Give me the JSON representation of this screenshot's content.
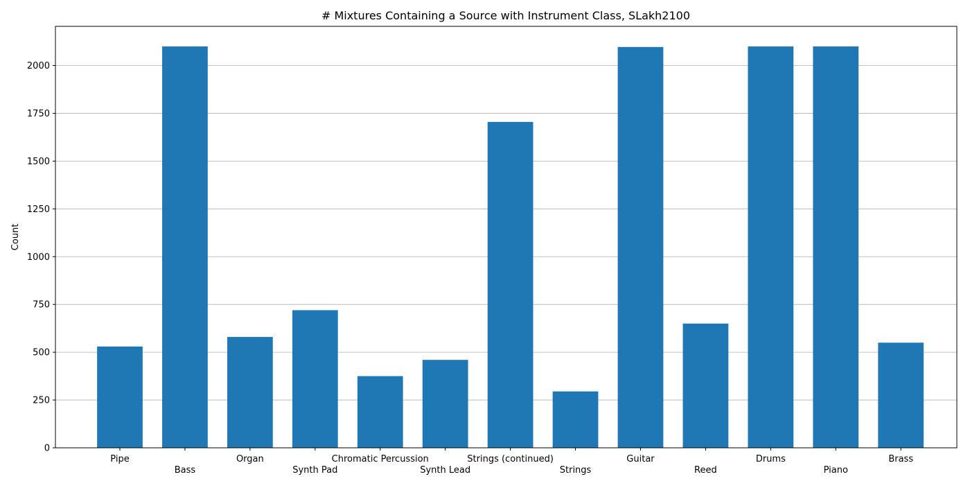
{
  "chart_data": {
    "type": "bar",
    "title": "# Mixtures Containing a Source with Instrument Class, SLakh2100",
    "xlabel": "",
    "ylabel": "Count",
    "categories": [
      "Pipe",
      "Bass",
      "Organ",
      "Synth Pad",
      "Chromatic Percussion",
      "Synth Lead",
      "Strings (continued)",
      "Strings",
      "Guitar",
      "Reed",
      "Drums",
      "Piano",
      "Brass"
    ],
    "values": [
      530,
      2100,
      580,
      720,
      375,
      460,
      1705,
      295,
      2097,
      650,
      2100,
      2100,
      550
    ],
    "ylim": [
      0,
      2205
    ],
    "yticks": [
      0,
      250,
      500,
      750,
      1000,
      1250,
      1500,
      1750,
      2000
    ],
    "ygrid": true,
    "bar_color": "#1f77b4",
    "tick_label_rows": "alternating"
  }
}
